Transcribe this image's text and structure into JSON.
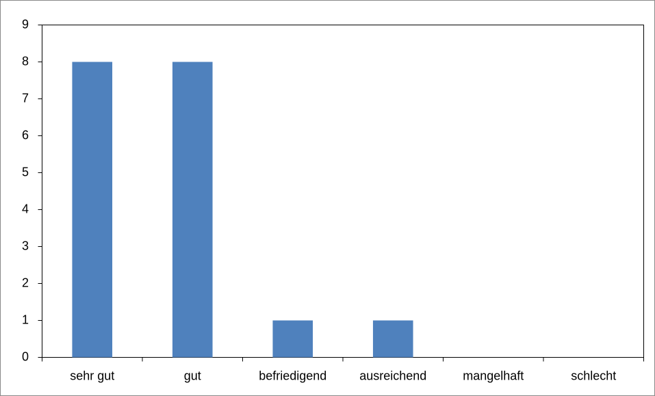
{
  "chart_data": {
    "type": "bar",
    "categories": [
      "sehr gut",
      "gut",
      "befriedigend",
      "ausreichend",
      "mangelhaft",
      "schlecht"
    ],
    "values": [
      8,
      8,
      1,
      1,
      0,
      0
    ],
    "color": "#4f81bd",
    "ylim": [
      0,
      9
    ],
    "yticks": [
      0,
      1,
      2,
      3,
      4,
      5,
      6,
      7,
      8,
      9
    ],
    "grid": false
  }
}
